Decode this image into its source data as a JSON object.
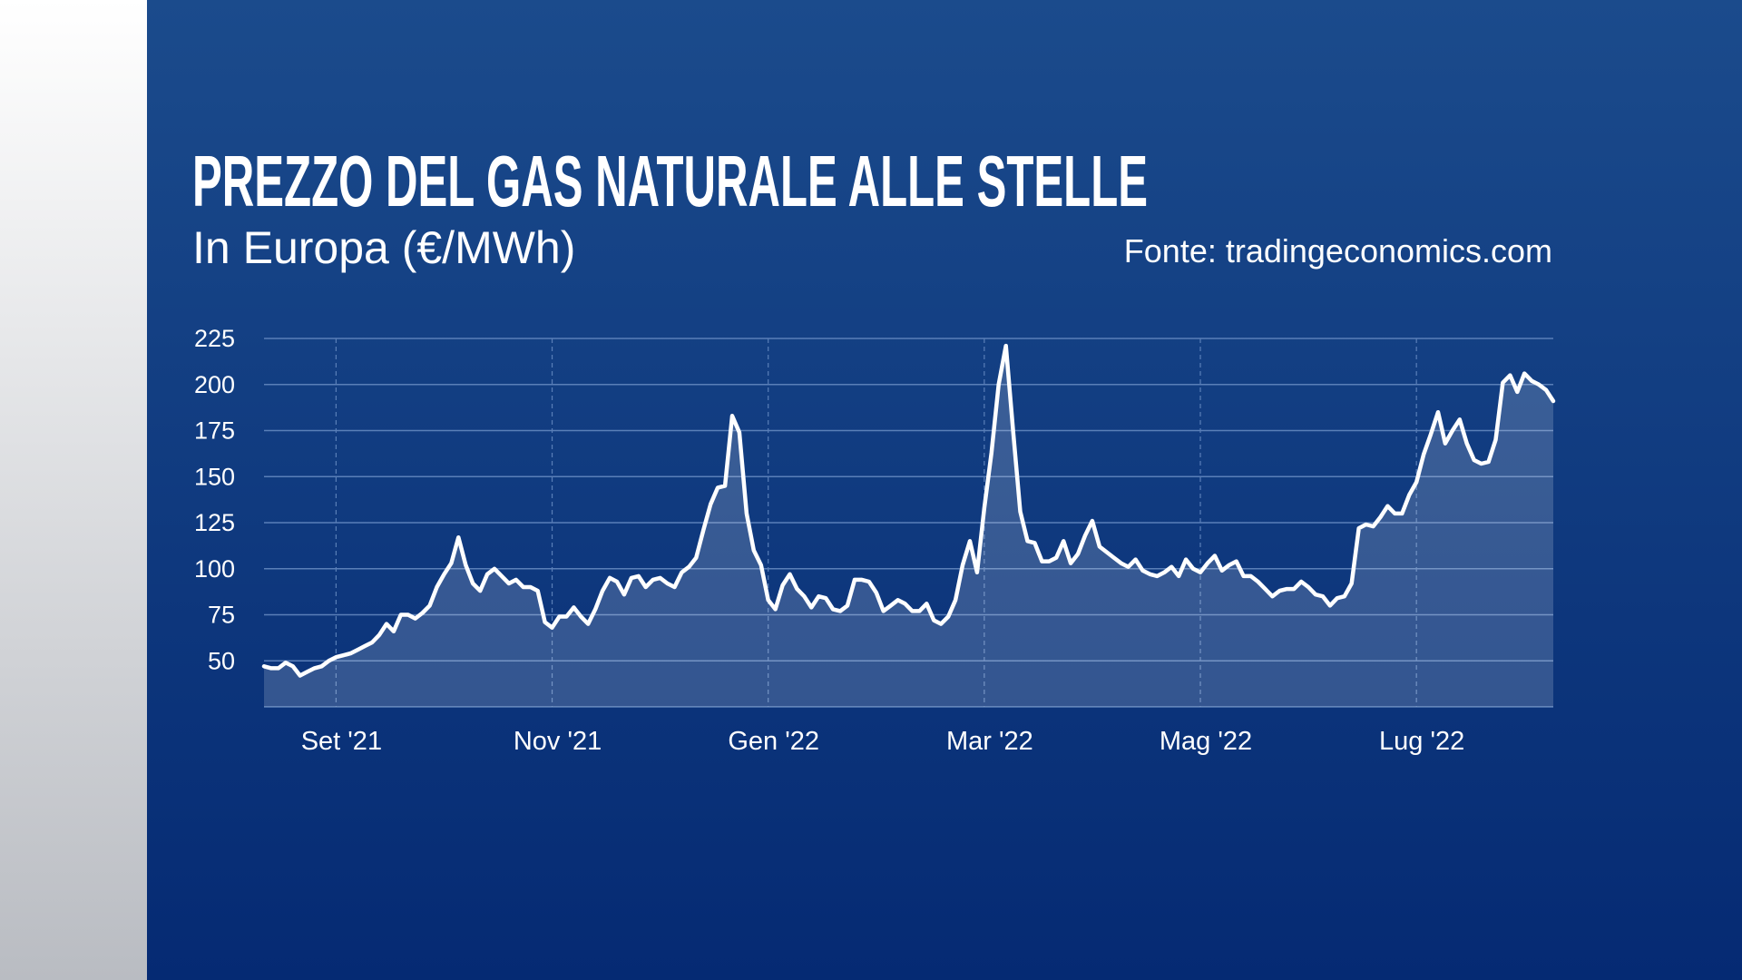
{
  "chart_data": {
    "type": "line",
    "title": "PREZZO DEL GAS NATURALE ALLE STELLE",
    "subtitle": "In Europa (€/MWh)",
    "source": "Fonte: tradingeconomics.com",
    "color": "#ffffff",
    "grid": true,
    "ylim": [
      25,
      225
    ],
    "yticks": [
      50,
      75,
      100,
      125,
      150,
      175,
      200,
      225
    ],
    "categories": [
      null,
      null,
      null,
      null,
      null,
      null,
      null,
      null,
      null,
      null,
      "Set '21",
      null,
      null,
      null,
      null,
      null,
      null,
      null,
      null,
      null,
      null,
      null,
      null,
      null,
      null,
      null,
      null,
      null,
      null,
      null,
      null,
      null,
      null,
      null,
      null,
      null,
      null,
      null,
      null,
      null,
      "Nov '21",
      null,
      null,
      null,
      null,
      null,
      null,
      null,
      null,
      null,
      null,
      null,
      null,
      null,
      null,
      null,
      null,
      null,
      null,
      null,
      null,
      null,
      null,
      null,
      null,
      null,
      null,
      null,
      null,
      null,
      "Gen '22",
      null,
      null,
      null,
      null,
      null,
      null,
      null,
      null,
      null,
      null,
      null,
      null,
      null,
      null,
      null,
      null,
      null,
      null,
      null,
      null,
      null,
      null,
      null,
      null,
      null,
      null,
      null,
      null,
      null,
      "Mar '22",
      null,
      null,
      null,
      null,
      null,
      null,
      null,
      null,
      null,
      null,
      null,
      null,
      null,
      null,
      null,
      null,
      null,
      null,
      null,
      null,
      null,
      null,
      null,
      null,
      null,
      null,
      null,
      null,
      null,
      "Mag '22",
      null,
      null,
      null,
      null,
      null,
      null,
      null,
      null,
      null,
      null,
      null,
      null,
      null,
      null,
      null,
      null,
      null,
      null,
      null,
      null,
      null,
      null,
      null,
      null,
      null,
      null,
      null,
      null,
      null,
      "Lug '22",
      null,
      null,
      null,
      null,
      null,
      null,
      null,
      null,
      null,
      null,
      null,
      null,
      null,
      null,
      null,
      null,
      null,
      null,
      null
    ],
    "values": [
      47,
      46,
      46,
      49,
      47,
      42,
      44,
      46,
      47,
      50,
      52,
      53,
      54,
      56,
      58,
      60,
      64,
      70,
      66,
      75,
      75,
      73,
      76,
      80,
      90,
      97,
      103,
      117,
      102,
      92,
      88,
      97,
      100,
      96,
      92,
      94,
      90,
      90,
      88,
      71,
      68,
      74,
      74,
      79,
      74,
      70,
      78,
      88,
      95,
      93,
      86,
      95,
      96,
      90,
      94,
      95,
      92,
      90,
      98,
      101,
      106,
      121,
      135,
      144,
      145,
      183,
      174,
      130,
      110,
      102,
      83,
      78,
      91,
      97,
      89,
      85,
      79,
      85,
      84,
      78,
      77,
      80,
      94,
      94,
      93,
      87,
      77,
      80,
      83,
      81,
      77,
      77,
      81,
      72,
      70,
      74,
      83,
      102,
      115,
      98,
      133,
      163,
      200,
      221,
      175,
      131,
      115,
      114,
      104,
      104,
      106,
      115,
      103,
      108,
      118,
      126,
      112,
      109,
      106,
      103,
      101,
      105,
      99,
      97,
      96,
      98,
      101,
      96,
      105,
      100,
      98,
      103,
      107,
      99,
      102,
      104,
      96,
      96,
      93,
      89,
      85,
      88,
      89,
      89,
      93,
      90,
      86,
      85,
      80,
      84,
      85,
      92,
      122,
      124,
      123,
      128,
      134,
      130,
      130,
      140,
      147,
      162,
      173,
      185,
      168,
      175,
      181,
      168,
      159,
      157,
      158,
      170,
      201,
      205,
      196,
      206,
      202,
      200,
      197,
      191
    ]
  }
}
